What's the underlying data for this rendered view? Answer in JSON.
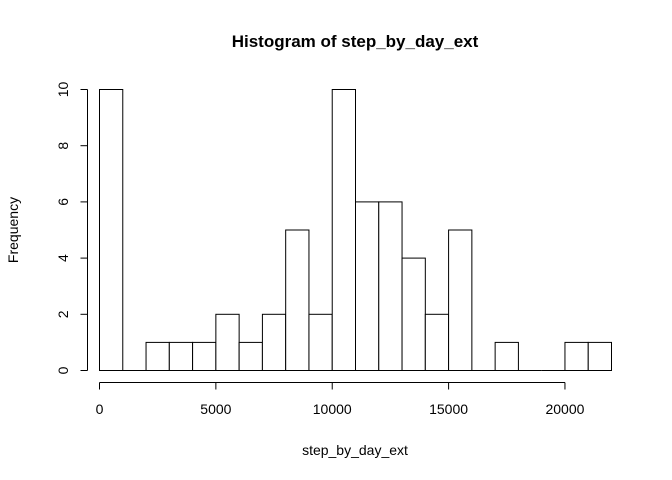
{
  "chart_data": {
    "type": "bar",
    "title": "Histogram of step_by_day_ext",
    "xlabel": "step_by_day_ext",
    "ylabel": "Frequency",
    "bin_width": 1000,
    "bins": [
      {
        "x0": 0,
        "x1": 1000,
        "count": 10
      },
      {
        "x0": 1000,
        "x1": 2000,
        "count": 0
      },
      {
        "x0": 2000,
        "x1": 3000,
        "count": 1
      },
      {
        "x0": 3000,
        "x1": 4000,
        "count": 1
      },
      {
        "x0": 4000,
        "x1": 5000,
        "count": 1
      },
      {
        "x0": 5000,
        "x1": 6000,
        "count": 2
      },
      {
        "x0": 6000,
        "x1": 7000,
        "count": 1
      },
      {
        "x0": 7000,
        "x1": 8000,
        "count": 2
      },
      {
        "x0": 8000,
        "x1": 9000,
        "count": 5
      },
      {
        "x0": 9000,
        "x1": 10000,
        "count": 2
      },
      {
        "x0": 10000,
        "x1": 11000,
        "count": 10
      },
      {
        "x0": 11000,
        "x1": 12000,
        "count": 6
      },
      {
        "x0": 12000,
        "x1": 13000,
        "count": 6
      },
      {
        "x0": 13000,
        "x1": 14000,
        "count": 4
      },
      {
        "x0": 14000,
        "x1": 15000,
        "count": 2
      },
      {
        "x0": 15000,
        "x1": 16000,
        "count": 5
      },
      {
        "x0": 16000,
        "x1": 17000,
        "count": 0
      },
      {
        "x0": 17000,
        "x1": 18000,
        "count": 1
      },
      {
        "x0": 18000,
        "x1": 19000,
        "count": 0
      },
      {
        "x0": 19000,
        "x1": 20000,
        "count": 0
      },
      {
        "x0": 20000,
        "x1": 21000,
        "count": 1
      },
      {
        "x0": 21000,
        "x1": 22000,
        "count": 1
      }
    ],
    "xlim": [
      0,
      22000
    ],
    "ylim": [
      0,
      10
    ],
    "x_ticks": [
      0,
      5000,
      10000,
      15000,
      20000
    ],
    "x_tick_labels": [
      "0",
      "5000",
      "10000",
      "15000",
      "20000"
    ],
    "y_ticks": [
      0,
      2,
      4,
      6,
      8,
      10
    ],
    "y_tick_labels": [
      "0",
      "2",
      "4",
      "6",
      "8",
      "10"
    ],
    "grid": false,
    "legend": "none",
    "colors": {
      "bar_fill": "#ffffff",
      "bar_stroke": "#000000"
    }
  }
}
